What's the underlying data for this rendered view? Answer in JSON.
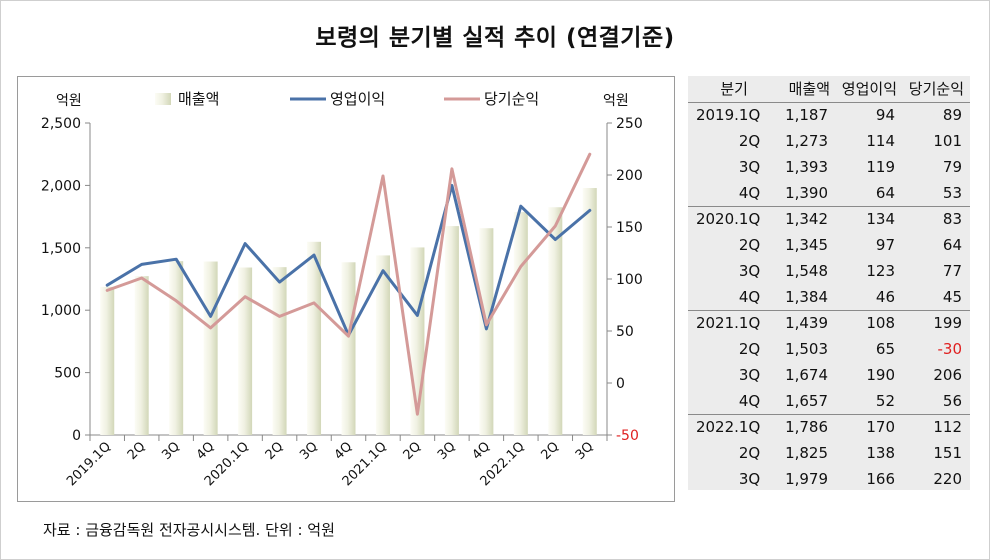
{
  "title": "보령의 분기별 실적 추이 (연결기준)",
  "source": "자료 : 금융감독원 전자공시시스템. 단위 : 억원",
  "colors": {
    "bar_light": "#fcfcf5",
    "bar_mid": "#d8dcc0",
    "op_line": "#4a72a8",
    "net_line": "#d49a98",
    "negative": "#e02020"
  },
  "table": {
    "headers": [
      "분기",
      "매출액",
      "영업이익",
      "당기순익"
    ],
    "rows": [
      {
        "q": "2019.1Q",
        "rev": "1,187",
        "op": "94",
        "net": "89",
        "group_start": true
      },
      {
        "q": "2Q",
        "rev": "1,273",
        "op": "114",
        "net": "101"
      },
      {
        "q": "3Q",
        "rev": "1,393",
        "op": "119",
        "net": "79"
      },
      {
        "q": "4Q",
        "rev": "1,390",
        "op": "64",
        "net": "53"
      },
      {
        "q": "2020.1Q",
        "rev": "1,342",
        "op": "134",
        "net": "83",
        "group_start": true
      },
      {
        "q": "2Q",
        "rev": "1,345",
        "op": "97",
        "net": "64"
      },
      {
        "q": "3Q",
        "rev": "1,548",
        "op": "123",
        "net": "77"
      },
      {
        "q": "4Q",
        "rev": "1,384",
        "op": "46",
        "net": "45"
      },
      {
        "q": "2021.1Q",
        "rev": "1,439",
        "op": "108",
        "net": "199",
        "group_start": true
      },
      {
        "q": "2Q",
        "rev": "1,503",
        "op": "65",
        "net": "-30"
      },
      {
        "q": "3Q",
        "rev": "1,674",
        "op": "190",
        "net": "206"
      },
      {
        "q": "4Q",
        "rev": "1,657",
        "op": "52",
        "net": "56"
      },
      {
        "q": "2022.1Q",
        "rev": "1,786",
        "op": "170",
        "net": "112",
        "group_start": true
      },
      {
        "q": "2Q",
        "rev": "1,825",
        "op": "138",
        "net": "151"
      },
      {
        "q": "3Q",
        "rev": "1,979",
        "op": "166",
        "net": "220"
      }
    ]
  },
  "chart_data": {
    "type": "bar",
    "categories": [
      "2019.1Q",
      "2Q",
      "3Q",
      "4Q",
      "2020.1Q",
      "2Q",
      "3Q",
      "4Q",
      "2021.1Q",
      "2Q",
      "3Q",
      "4Q",
      "2022.1Q",
      "2Q",
      "3Q"
    ],
    "left_axis": {
      "unit_label": "억원",
      "min": 0,
      "max": 2500,
      "ticks": [
        0,
        500,
        1000,
        1500,
        2000,
        2500
      ],
      "tick_labels": [
        "0",
        "500",
        "1,000",
        "1,500",
        "2,000",
        "2,500"
      ]
    },
    "right_axis": {
      "unit_label": "억원",
      "min": -50,
      "max": 250,
      "ticks": [
        -50,
        0,
        50,
        100,
        150,
        200,
        250
      ],
      "tick_labels": [
        "-50",
        "0",
        "50",
        "100",
        "150",
        "200",
        "250"
      ]
    },
    "series": [
      {
        "name": "매출액",
        "type": "bar",
        "axis": "left",
        "values": [
          1187,
          1273,
          1393,
          1390,
          1342,
          1345,
          1548,
          1384,
          1439,
          1503,
          1674,
          1657,
          1786,
          1825,
          1979
        ]
      },
      {
        "name": "영업이익",
        "type": "line",
        "axis": "right",
        "values": [
          94,
          114,
          119,
          64,
          134,
          97,
          123,
          46,
          108,
          65,
          190,
          52,
          170,
          138,
          166
        ]
      },
      {
        "name": "당기순익",
        "type": "line",
        "axis": "right",
        "values": [
          89,
          101,
          79,
          53,
          83,
          64,
          77,
          45,
          199,
          -30,
          206,
          56,
          112,
          151,
          220
        ]
      }
    ],
    "legend_position": "top",
    "grid": false
  }
}
